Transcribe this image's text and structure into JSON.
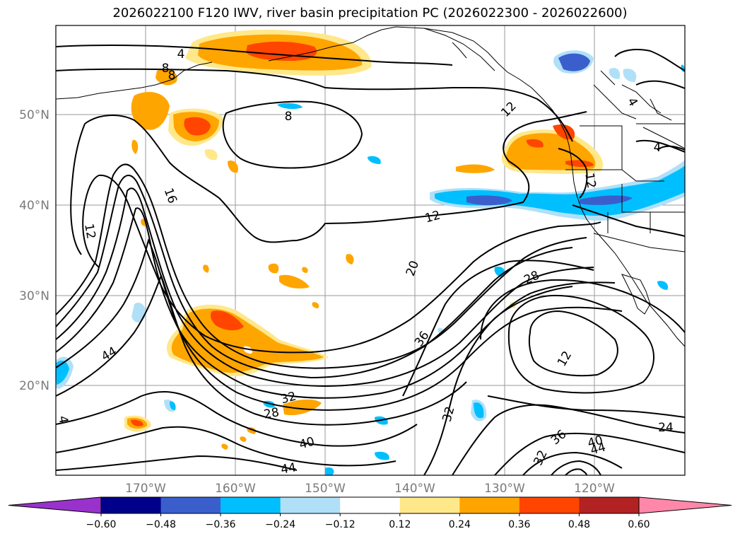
{
  "title": "2026022100 F120 IWV, river basin precipitation PC (2026022300 - 2026022600)",
  "map": {
    "lat_ticks": [
      "50°N",
      "40°N",
      "30°N",
      "20°N"
    ],
    "lon_ticks": [
      "170°W",
      "160°W",
      "150°W",
      "140°W",
      "130°W",
      "120°W"
    ],
    "contour_labels": [
      "4",
      "8",
      "8",
      "12",
      "12",
      "16",
      "12",
      "20",
      "28",
      "36",
      "44",
      "32",
      "28",
      "12",
      "32",
      "36",
      "40",
      "44",
      "40",
      "44",
      "32",
      "24",
      "4",
      "4",
      "12",
      "4",
      "8"
    ]
  },
  "colorbar": {
    "ticks": [
      "−0.60",
      "−0.48",
      "−0.36",
      "−0.24",
      "−0.12",
      "0.12",
      "0.24",
      "0.36",
      "0.48",
      "0.60"
    ],
    "colors": [
      "#9932cc",
      "#00008b",
      "#3a5fcd",
      "#00bfff",
      "#b0e0f8",
      "#ffffff",
      "#ffe88a",
      "#ffa500",
      "#ff4500",
      "#b22222",
      "#ff88aa"
    ]
  }
}
